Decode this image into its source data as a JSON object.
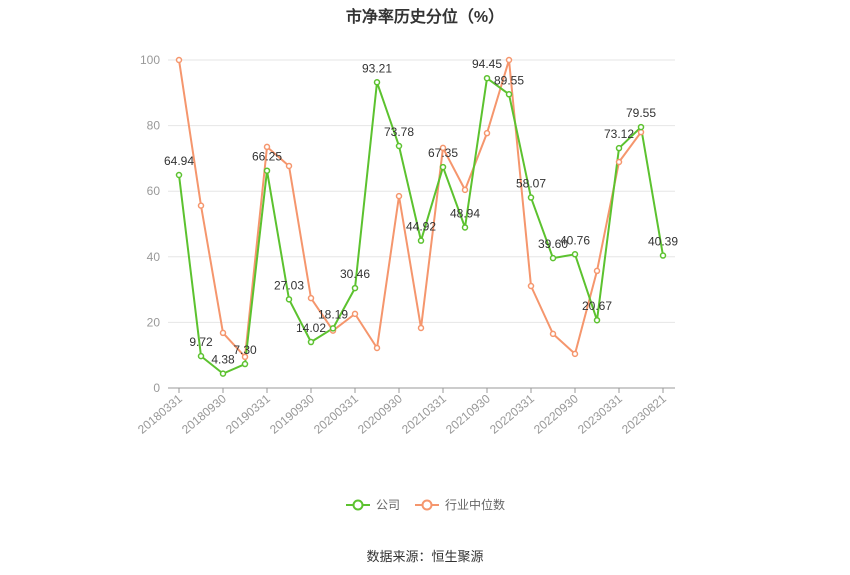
{
  "source": "数据来源：恒生聚源",
  "chart_data": {
    "type": "line",
    "title": "市净率历史分位（%）",
    "x_tick_labels": [
      "20180331",
      "20180930",
      "20190331",
      "20190930",
      "20200331",
      "20200930",
      "20210331",
      "20210930",
      "20220331",
      "20220930",
      "20230331",
      "20230821"
    ],
    "ylim": [
      0,
      100
    ],
    "yticks": [
      0,
      20,
      40,
      60,
      80,
      100
    ],
    "grid": true,
    "legend_position": "bottom",
    "series": [
      {
        "name": "公司",
        "color": "#5cc22f",
        "data_labels": true,
        "values": [
          64.94,
          9.72,
          4.38,
          7.3,
          66.25,
          27.03,
          14.02,
          18.19,
          30.46,
          93.21,
          73.78,
          44.92,
          67.35,
          48.94,
          94.45,
          89.55,
          58.07,
          39.6,
          40.76,
          20.67,
          73.12,
          79.55,
          40.39
        ]
      },
      {
        "name": "行业中位数",
        "color": "#f5966d",
        "data_labels": false,
        "values": [
          100,
          55.6,
          16.8,
          9.5,
          73.5,
          67.7,
          27.4,
          17.5,
          22.6,
          12.2,
          58.5,
          18.3,
          73.2,
          60.4,
          77.7,
          100,
          31.1,
          16.5,
          10.4,
          35.7,
          68.9,
          78.0,
          null
        ]
      }
    ]
  }
}
